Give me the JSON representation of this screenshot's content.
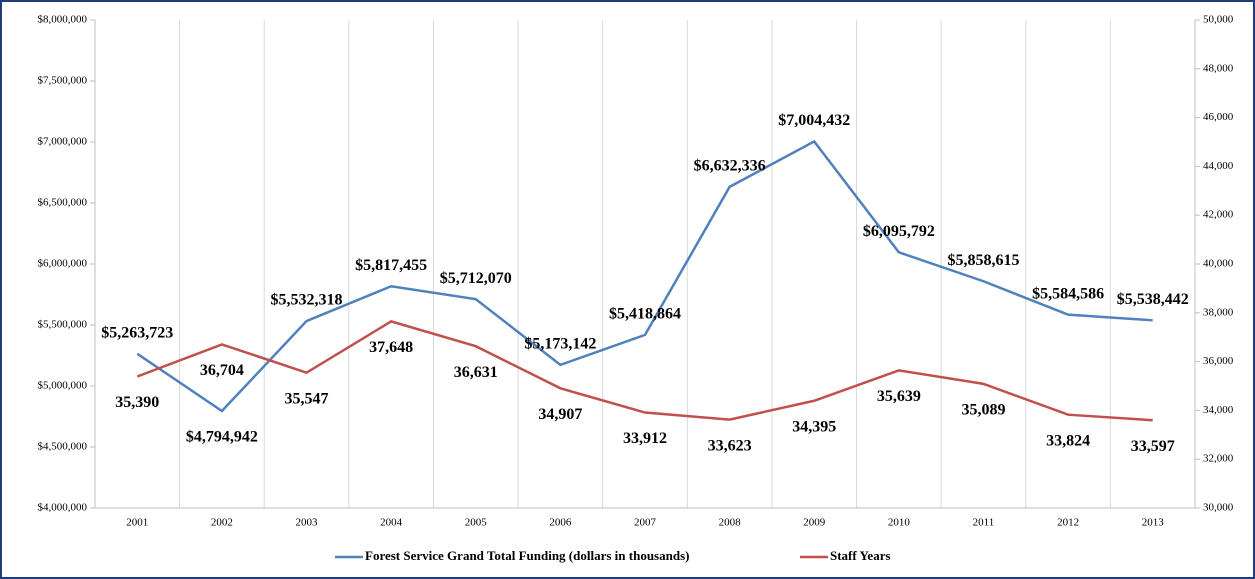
{
  "chart_data": {
    "type": "line",
    "categories": [
      "2001",
      "2002",
      "2003",
      "2004",
      "2005",
      "2006",
      "2007",
      "2008",
      "2009",
      "2010",
      "2011",
      "2012",
      "2013"
    ],
    "series": [
      {
        "name": "Forest Service Grand Total Funding (dollars in thousands)",
        "color": "#4f81bd",
        "values": [
          5263723,
          4794942,
          5532318,
          5817455,
          5712070,
          5173142,
          5418864,
          6632336,
          7004432,
          6095792,
          5858615,
          5584586,
          5538442
        ],
        "value_labels": [
          "$5,263,723",
          "$4,794,942",
          "$5,532,318",
          "$5,817,455",
          "$5,712,070",
          "$5,173,142",
          "$5,418,864",
          "$6,632,336",
          "$7,004,432",
          "$6,095,792",
          "$5,858,615",
          "$5,584,586",
          "$5,538,442"
        ]
      },
      {
        "name": "Staff Years",
        "color": "#c0504d",
        "axis": "y2",
        "values": [
          35390,
          36704,
          35547,
          37648,
          36631,
          34907,
          33912,
          33623,
          34395,
          35639,
          35089,
          33824,
          33597
        ],
        "value_labels": [
          "35,390",
          "36,704",
          "35,547",
          "37,648",
          "36,631",
          "34,907",
          "33,912",
          "33,623",
          "34,395",
          "35,639",
          "35,089",
          "33,824",
          "33,597"
        ]
      }
    ],
    "ylim": [
      4000000,
      8000000
    ],
    "yticks": [
      {
        "value": 4000000,
        "label": "$4,000,000"
      },
      {
        "value": 4500000,
        "label": "$4,500,000"
      },
      {
        "value": 5000000,
        "label": "$5,000,000"
      },
      {
        "value": 5500000,
        "label": "$5,500,000"
      },
      {
        "value": 6000000,
        "label": "$6,000,000"
      },
      {
        "value": 6500000,
        "label": "$6,500,000"
      },
      {
        "value": 7000000,
        "label": "$7,000,000"
      },
      {
        "value": 7500000,
        "label": "$7,500,000"
      },
      {
        "value": 8000000,
        "label": "$8,000,000"
      }
    ],
    "y2lim": [
      30000,
      50000
    ],
    "y2ticks": [
      {
        "value": 30000,
        "label": "30,000"
      },
      {
        "value": 32000,
        "label": "32,000"
      },
      {
        "value": 34000,
        "label": "34,000"
      },
      {
        "value": 36000,
        "label": "36,000"
      },
      {
        "value": 38000,
        "label": "38,000"
      },
      {
        "value": 40000,
        "label": "40,000"
      },
      {
        "value": 42000,
        "label": "42,000"
      },
      {
        "value": 44000,
        "label": "44,000"
      },
      {
        "value": 46000,
        "label": "46,000"
      },
      {
        "value": 48000,
        "label": "48,000"
      },
      {
        "value": 50000,
        "label": "50,000"
      }
    ],
    "legend": "bottom"
  }
}
